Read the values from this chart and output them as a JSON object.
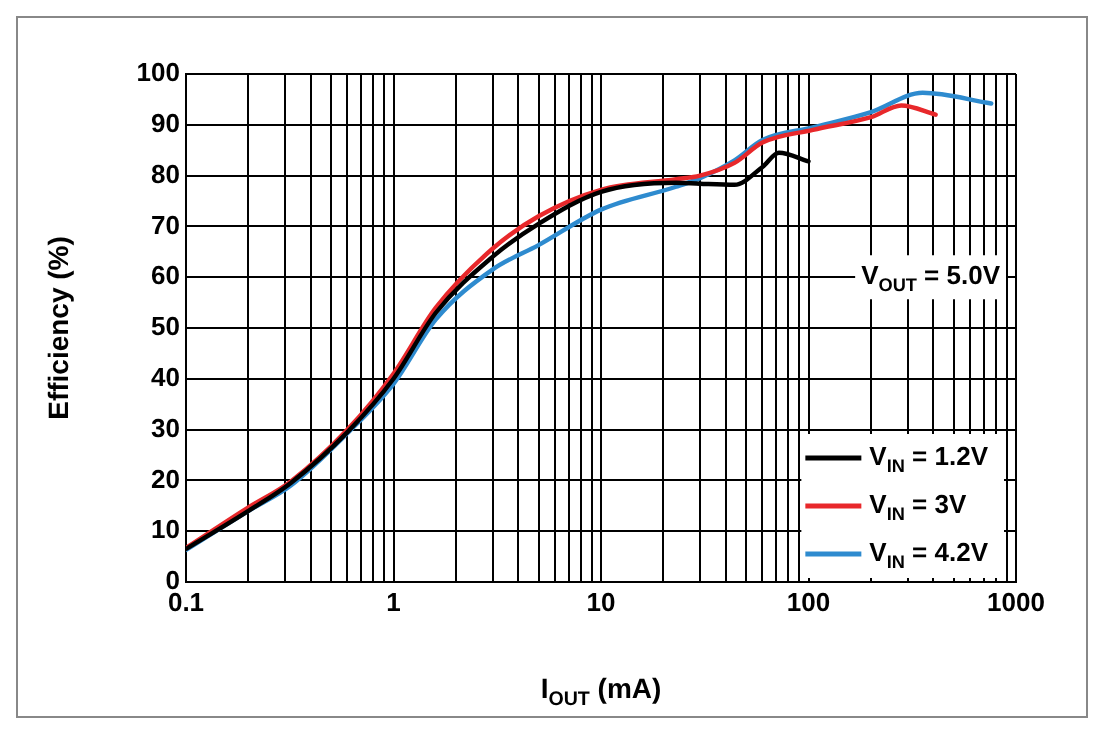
{
  "chart_data": {
    "type": "line",
    "xlabel": "I$_{OUT}$ (mA)",
    "ylabel": "Efficiency (%)",
    "log": "x",
    "grid": true,
    "legend": "bottom right",
    "marker": "none",
    "line_style": "solid",
    "annotations": [
      "V$_{OUT}$ = 5.0V"
    ],
    "xlim": [
      0.1,
      1000
    ],
    "ylim": [
      0,
      100
    ],
    "yticks": [
      0,
      10,
      20,
      30,
      40,
      50,
      60,
      70,
      80,
      90,
      100
    ],
    "xticks": [
      0.1,
      {
        "value": 0.2,
        "label": null
      },
      {
        "value": 0.3,
        "label": null
      },
      {
        "value": 0.4,
        "label": null
      },
      {
        "value": 0.5,
        "label": null
      },
      {
        "value": 0.6,
        "label": null
      },
      {
        "value": 0.7,
        "label": null
      },
      {
        "value": 0.8,
        "label": null
      },
      {
        "value": 0.9,
        "label": null
      },
      1,
      {
        "value": 2,
        "label": null
      },
      {
        "value": 3,
        "label": null
      },
      {
        "value": 4,
        "label": null
      },
      {
        "value": 5,
        "label": null
      },
      {
        "value": 6,
        "label": null
      },
      {
        "value": 7,
        "label": null
      },
      {
        "value": 8,
        "label": null
      },
      {
        "value": 9,
        "label": null
      },
      10,
      {
        "value": 20,
        "label": null
      },
      {
        "value": 30,
        "label": null
      },
      {
        "value": 40,
        "label": null
      },
      {
        "value": 50,
        "label": null
      },
      {
        "value": 60,
        "label": null
      },
      {
        "value": 70,
        "label": null
      },
      {
        "value": 80,
        "label": null
      },
      {
        "value": 90,
        "label": null
      },
      100,
      {
        "value": 200,
        "label": null
      },
      {
        "value": 300,
        "label": null
      },
      {
        "value": 400,
        "label": null
      },
      {
        "value": 500,
        "label": null
      },
      {
        "value": 600,
        "label": null
      },
      {
        "value": 700,
        "label": null
      },
      {
        "value": 800,
        "label": null
      },
      {
        "value": 900,
        "label": null
      },
      1000
    ],
    "series": [
      {
        "name": "V$_{IN}$ = 1.2V",
        "color": "#000000",
        "x": [
          0.1,
          0.2,
          0.32,
          0.6,
          1,
          1.6,
          3,
          5,
          10,
          23,
          30,
          44,
          60,
          72,
          100
        ],
        "values": [
          6.5,
          14,
          19.5,
          29.5,
          40,
          53,
          64,
          70.5,
          76.8,
          78.6,
          78.4,
          78.2,
          81.7,
          84.5,
          82.8
        ]
      },
      {
        "name": "V$_{IN}$ = 3V",
        "color": "#e8282b",
        "x": [
          0.1,
          0.2,
          0.32,
          0.6,
          1,
          1.6,
          3,
          5,
          10,
          23,
          30,
          44,
          60,
          105,
          200,
          280,
          410
        ],
        "values": [
          6.7,
          14.7,
          19.8,
          30,
          41,
          54,
          65.6,
          72,
          77.2,
          79.3,
          80,
          82.5,
          86.5,
          89,
          91.5,
          93.8,
          92
        ]
      },
      {
        "name": "V$_{IN}$ = 4.2V",
        "color": "#2e8bcf",
        "x": [
          0.1,
          0.2,
          0.32,
          0.6,
          1,
          1.6,
          3,
          5,
          10,
          23,
          30,
          44,
          60,
          105,
          200,
          355,
          760
        ],
        "values": [
          6.3,
          14,
          19,
          29.3,
          39,
          51.7,
          61.5,
          66.3,
          73.3,
          77.8,
          79.5,
          83,
          87,
          89.5,
          92.5,
          96.3,
          94.2
        ]
      }
    ]
  }
}
